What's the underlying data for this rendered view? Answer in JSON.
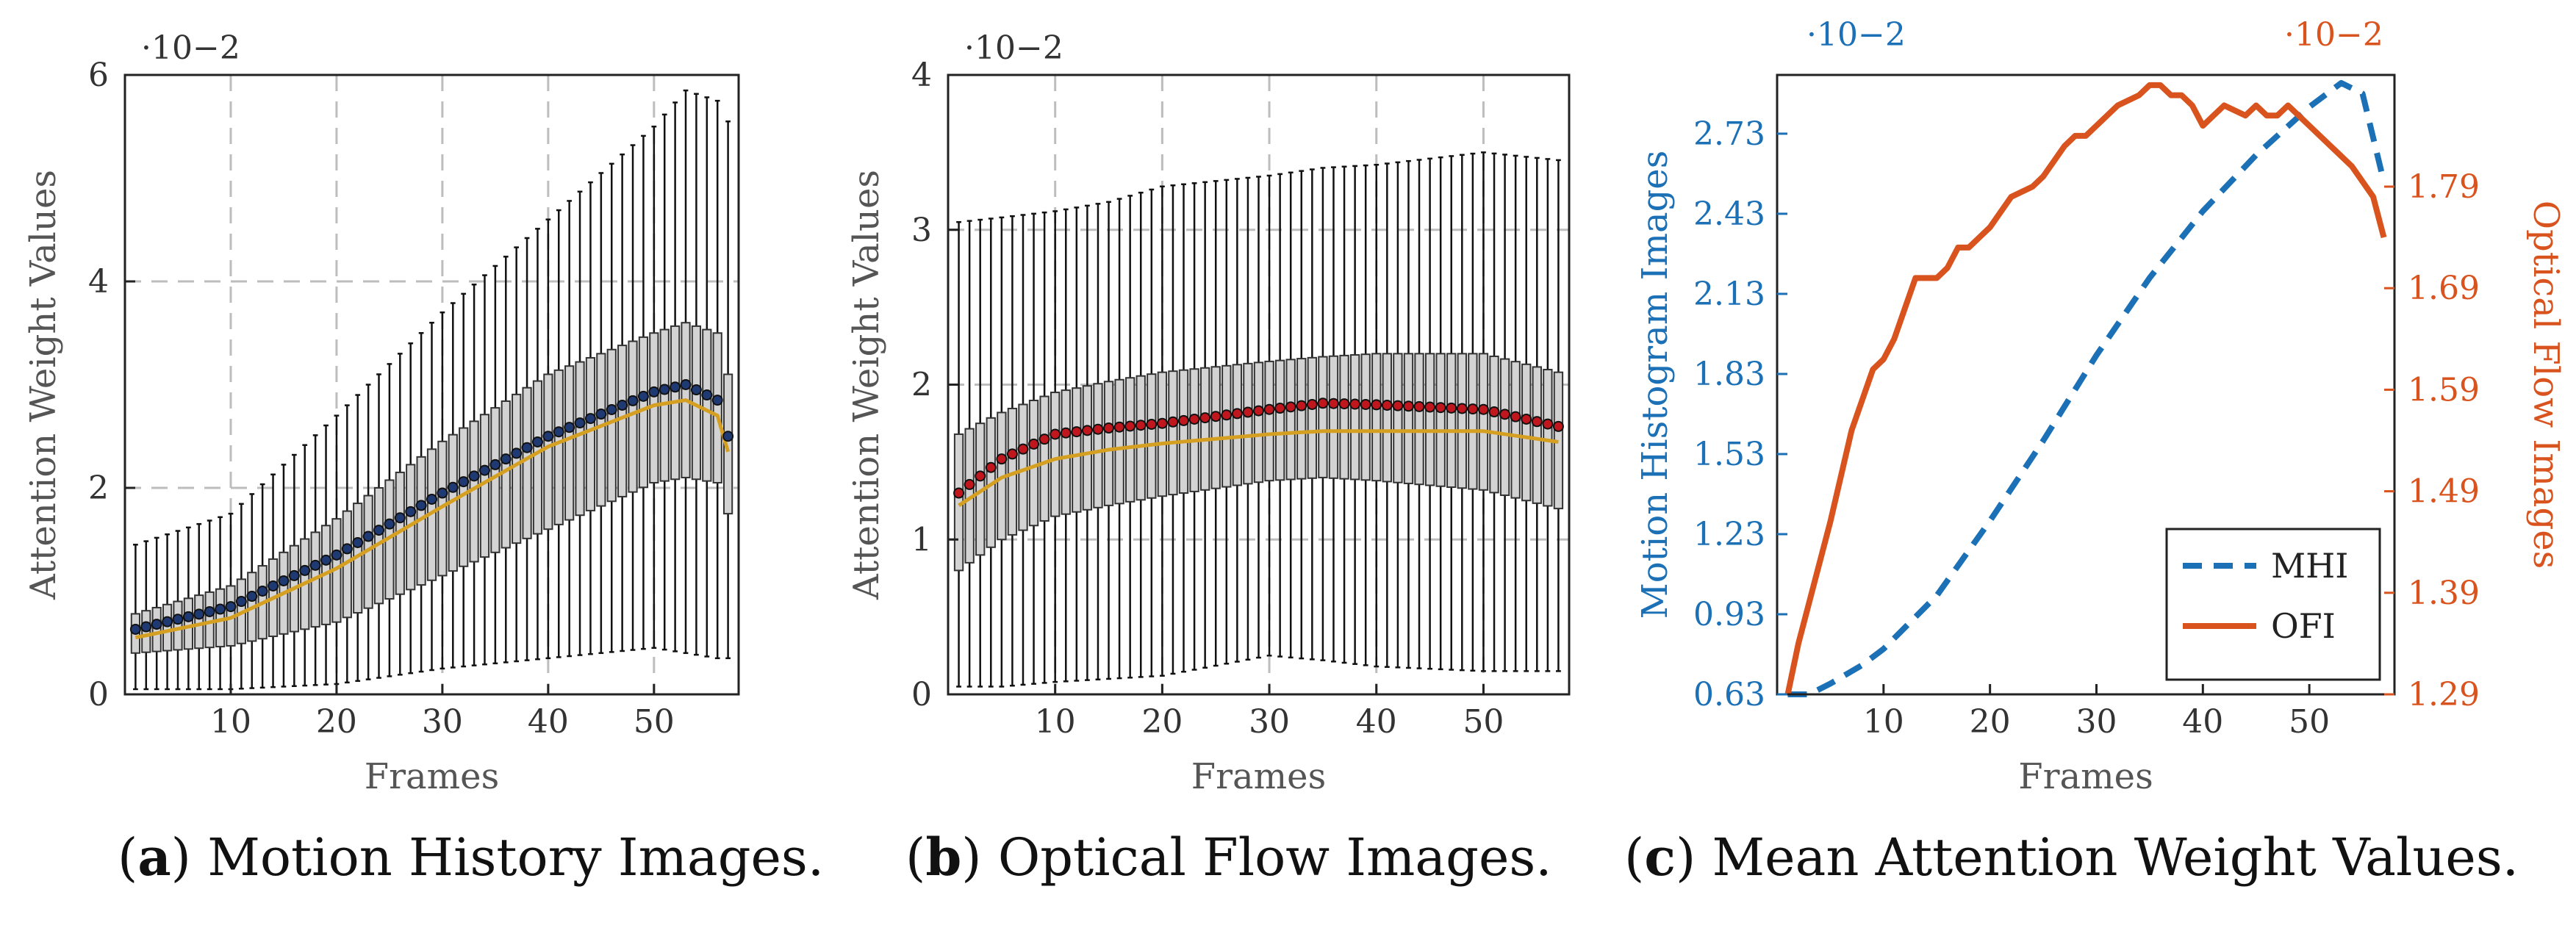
{
  "captions": {
    "a": {
      "letter": "a",
      "text": "Motion History Images."
    },
    "b": {
      "letter": "b",
      "text": "Optical Flow Images."
    },
    "c": {
      "letter": "c",
      "text": "Mean Attention Weight Values."
    }
  },
  "colors": {
    "mhi": "#1b70b6",
    "ofi": "#d9531e",
    "box_fill": "#d3d3d3",
    "median": "#d5a021",
    "mean_marker_a": "#1f3a73",
    "mean_marker_b": "#c0161e",
    "axis": "#222222",
    "grid": "#bdbdbd"
  },
  "chart_data": [
    {
      "type": "box",
      "id": "a",
      "xlabel": "Frames",
      "ylabel": "Attention Weight Values",
      "multiplier": "·10−2",
      "xlim": [
        0,
        58
      ],
      "ylim": [
        0,
        6
      ],
      "xticks": [
        10,
        20,
        30,
        40,
        50
      ],
      "yticks": [
        0,
        2,
        4,
        6
      ],
      "grid": true,
      "frames": {
        "start": 1,
        "end": 57
      },
      "anchors": {
        "frame": [
          1,
          10,
          20,
          30,
          40,
          50,
          53,
          56,
          57
        ],
        "mean": [
          0.63,
          0.85,
          1.35,
          1.95,
          2.5,
          2.93,
          3.0,
          2.85,
          2.5
        ],
        "median": [
          0.55,
          0.74,
          1.22,
          1.82,
          2.4,
          2.8,
          2.85,
          2.7,
          2.35
        ],
        "q1": [
          0.4,
          0.47,
          0.7,
          1.15,
          1.6,
          2.05,
          2.1,
          2.05,
          1.75
        ],
        "q3": [
          0.78,
          1.05,
          1.7,
          2.45,
          3.1,
          3.5,
          3.6,
          3.5,
          3.1
        ],
        "whisker_low": [
          0.05,
          0.05,
          0.1,
          0.25,
          0.35,
          0.45,
          0.4,
          0.35,
          0.35
        ],
        "whisker_high": [
          1.45,
          1.75,
          2.7,
          3.7,
          4.6,
          5.5,
          5.85,
          5.75,
          5.55
        ]
      }
    },
    {
      "type": "box",
      "id": "b",
      "xlabel": "Frames",
      "ylabel": "Attention Weight Values",
      "multiplier": "·10−2",
      "xlim": [
        0,
        58
      ],
      "ylim": [
        0,
        4
      ],
      "xticks": [
        10,
        20,
        30,
        40,
        50
      ],
      "yticks": [
        0,
        1,
        2,
        3,
        4
      ],
      "grid": true,
      "frames": {
        "start": 1,
        "end": 57
      },
      "anchors": {
        "frame": [
          1,
          5,
          10,
          15,
          20,
          30,
          35,
          40,
          50,
          57
        ],
        "mean": [
          1.3,
          1.52,
          1.68,
          1.72,
          1.75,
          1.84,
          1.88,
          1.87,
          1.84,
          1.73
        ],
        "median": [
          1.22,
          1.4,
          1.52,
          1.58,
          1.62,
          1.68,
          1.7,
          1.7,
          1.7,
          1.63
        ],
        "q1": [
          0.8,
          1.0,
          1.15,
          1.22,
          1.28,
          1.38,
          1.4,
          1.38,
          1.32,
          1.2
        ],
        "q3": [
          1.68,
          1.82,
          1.95,
          2.02,
          2.08,
          2.15,
          2.18,
          2.2,
          2.2,
          2.08
        ],
        "whisker_low": [
          0.05,
          0.05,
          0.08,
          0.1,
          0.12,
          0.25,
          0.22,
          0.18,
          0.15,
          0.15
        ],
        "whisker_high": [
          3.05,
          3.08,
          3.12,
          3.18,
          3.28,
          3.35,
          3.4,
          3.42,
          3.5,
          3.45
        ]
      }
    },
    {
      "type": "line",
      "id": "c",
      "xlabel": "Frames",
      "ylabel_left": "Motion Histogram Images",
      "ylabel_right": "Optical Flow Images",
      "multiplier_left": "·10−2",
      "multiplier_right": "·10−2",
      "xlim": [
        0,
        58
      ],
      "ylim_left": [
        0.63,
        2.95
      ],
      "ylim_right": [
        1.29,
        1.9
      ],
      "xticks": [
        10,
        20,
        30,
        40,
        50
      ],
      "yticks_left": [
        0.63,
        0.93,
        1.23,
        1.53,
        1.83,
        2.13,
        2.43,
        2.73
      ],
      "yticks_right": [
        1.29,
        1.39,
        1.49,
        1.59,
        1.69,
        1.79
      ],
      "grid": false,
      "legend": {
        "position": "bottom-right"
      },
      "series": [
        {
          "name": "MHI",
          "axis": "left",
          "style": "dashed",
          "x": [
            1,
            3,
            5,
            8,
            10,
            15,
            20,
            25,
            30,
            35,
            40,
            45,
            50,
            53,
            55,
            57
          ],
          "y": [
            0.63,
            0.63,
            0.67,
            0.74,
            0.8,
            1.0,
            1.28,
            1.58,
            1.9,
            2.19,
            2.44,
            2.65,
            2.83,
            2.92,
            2.88,
            2.55
          ]
        },
        {
          "name": "OFI",
          "axis": "right",
          "style": "solid",
          "x": [
            1,
            2,
            3,
            5,
            7,
            9,
            10,
            11,
            12,
            13,
            15,
            16,
            17,
            18,
            19,
            20,
            22,
            24,
            25,
            27,
            28,
            29,
            30,
            32,
            34,
            35,
            36,
            37,
            38,
            39,
            40,
            41,
            42,
            44,
            45,
            46,
            47,
            48,
            50,
            52,
            54,
            56,
            57
          ],
          "y": [
            1.29,
            1.34,
            1.38,
            1.46,
            1.55,
            1.61,
            1.62,
            1.64,
            1.67,
            1.7,
            1.7,
            1.71,
            1.73,
            1.73,
            1.74,
            1.75,
            1.78,
            1.79,
            1.8,
            1.83,
            1.84,
            1.84,
            1.85,
            1.87,
            1.88,
            1.89,
            1.89,
            1.88,
            1.88,
            1.87,
            1.85,
            1.86,
            1.87,
            1.86,
            1.87,
            1.86,
            1.86,
            1.87,
            1.85,
            1.83,
            1.81,
            1.78,
            1.74
          ]
        }
      ]
    }
  ]
}
